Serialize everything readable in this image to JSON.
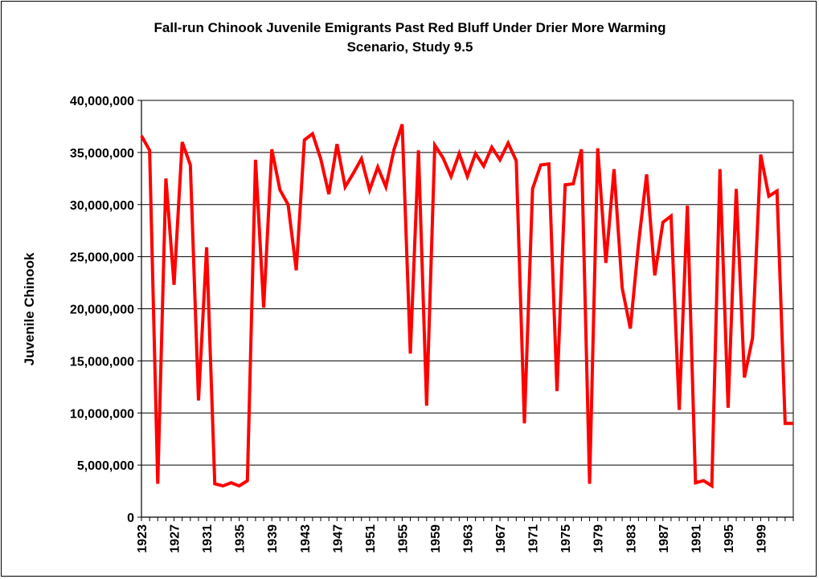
{
  "chart_data": {
    "type": "line",
    "title_line1": "Fall-run Chinook Juvenile Emigrants Past Red Bluff Under Drier More Warming",
    "title_line2": "Scenario, Study 9.5",
    "xlabel": "",
    "ylabel": "Juvenile Chinook",
    "ylim": [
      0,
      40000000
    ],
    "yticks": [
      0,
      5000000,
      10000000,
      15000000,
      20000000,
      25000000,
      30000000,
      35000000,
      40000000
    ],
    "ytick_labels": [
      "0",
      "5,000,000",
      "10,000,000",
      "15,000,000",
      "20,000,000",
      "25,000,000",
      "30,000,000",
      "35,000,000",
      "40,000,000"
    ],
    "xlim": [
      1923,
      2003
    ],
    "xtick_labels": [
      "1923",
      "1927",
      "1931",
      "1935",
      "1939",
      "1943",
      "1947",
      "1951",
      "1955",
      "1959",
      "1963",
      "1967",
      "1971",
      "1975",
      "1979",
      "1983",
      "1987",
      "1991",
      "1995",
      "1999"
    ],
    "grid": "horizontal",
    "line_color": "#ff0000",
    "series": [
      {
        "x": [
          1923,
          1924,
          1925,
          1926,
          1927,
          1928,
          1929,
          1930,
          1931,
          1932,
          1933,
          1934,
          1935,
          1936,
          1937,
          1938,
          1939,
          1940,
          1941,
          1942,
          1943,
          1944,
          1945,
          1946,
          1947,
          1948,
          1949,
          1950,
          1951,
          1952,
          1953,
          1954,
          1955,
          1956,
          1957,
          1958,
          1959,
          1960,
          1961,
          1962,
          1963,
          1964,
          1965,
          1966,
          1967,
          1968,
          1969,
          1970,
          1971,
          1972,
          1973,
          1974,
          1975,
          1976,
          1977,
          1978,
          1979,
          1980,
          1981,
          1982,
          1983,
          1984,
          1985,
          1986,
          1987,
          1988,
          1989,
          1990,
          1991,
          1992,
          1993,
          1994,
          1995,
          1996,
          1997,
          1998,
          1999,
          2000,
          2001,
          2002,
          2003
        ],
        "values": [
          36600000,
          35200000,
          3200000,
          32500000,
          22300000,
          36000000,
          33800000,
          11200000,
          25900000,
          3200000,
          3000000,
          3300000,
          3000000,
          3500000,
          34300000,
          20100000,
          35300000,
          31400000,
          30000000,
          23700000,
          36200000,
          36800000,
          34400000,
          31000000,
          35800000,
          31700000,
          33000000,
          34400000,
          31400000,
          33600000,
          31700000,
          35300000,
          37700000,
          15700000,
          35200000,
          10700000,
          35700000,
          34500000,
          32700000,
          34900000,
          32700000,
          34900000,
          33700000,
          35500000,
          34300000,
          35900000,
          34200000,
          9000000,
          31500000,
          33800000,
          33900000,
          12100000,
          31900000,
          32000000,
          35300000,
          3200000,
          35400000,
          24400000,
          33400000,
          22000000,
          18100000,
          26200000,
          32900000,
          23200000,
          28300000,
          28900000,
          10300000,
          29900000,
          3300000,
          3500000,
          3000000,
          33400000,
          10500000,
          31500000,
          13400000,
          17200000,
          34800000,
          30800000,
          31300000,
          9000000,
          9000000
        ]
      }
    ]
  }
}
